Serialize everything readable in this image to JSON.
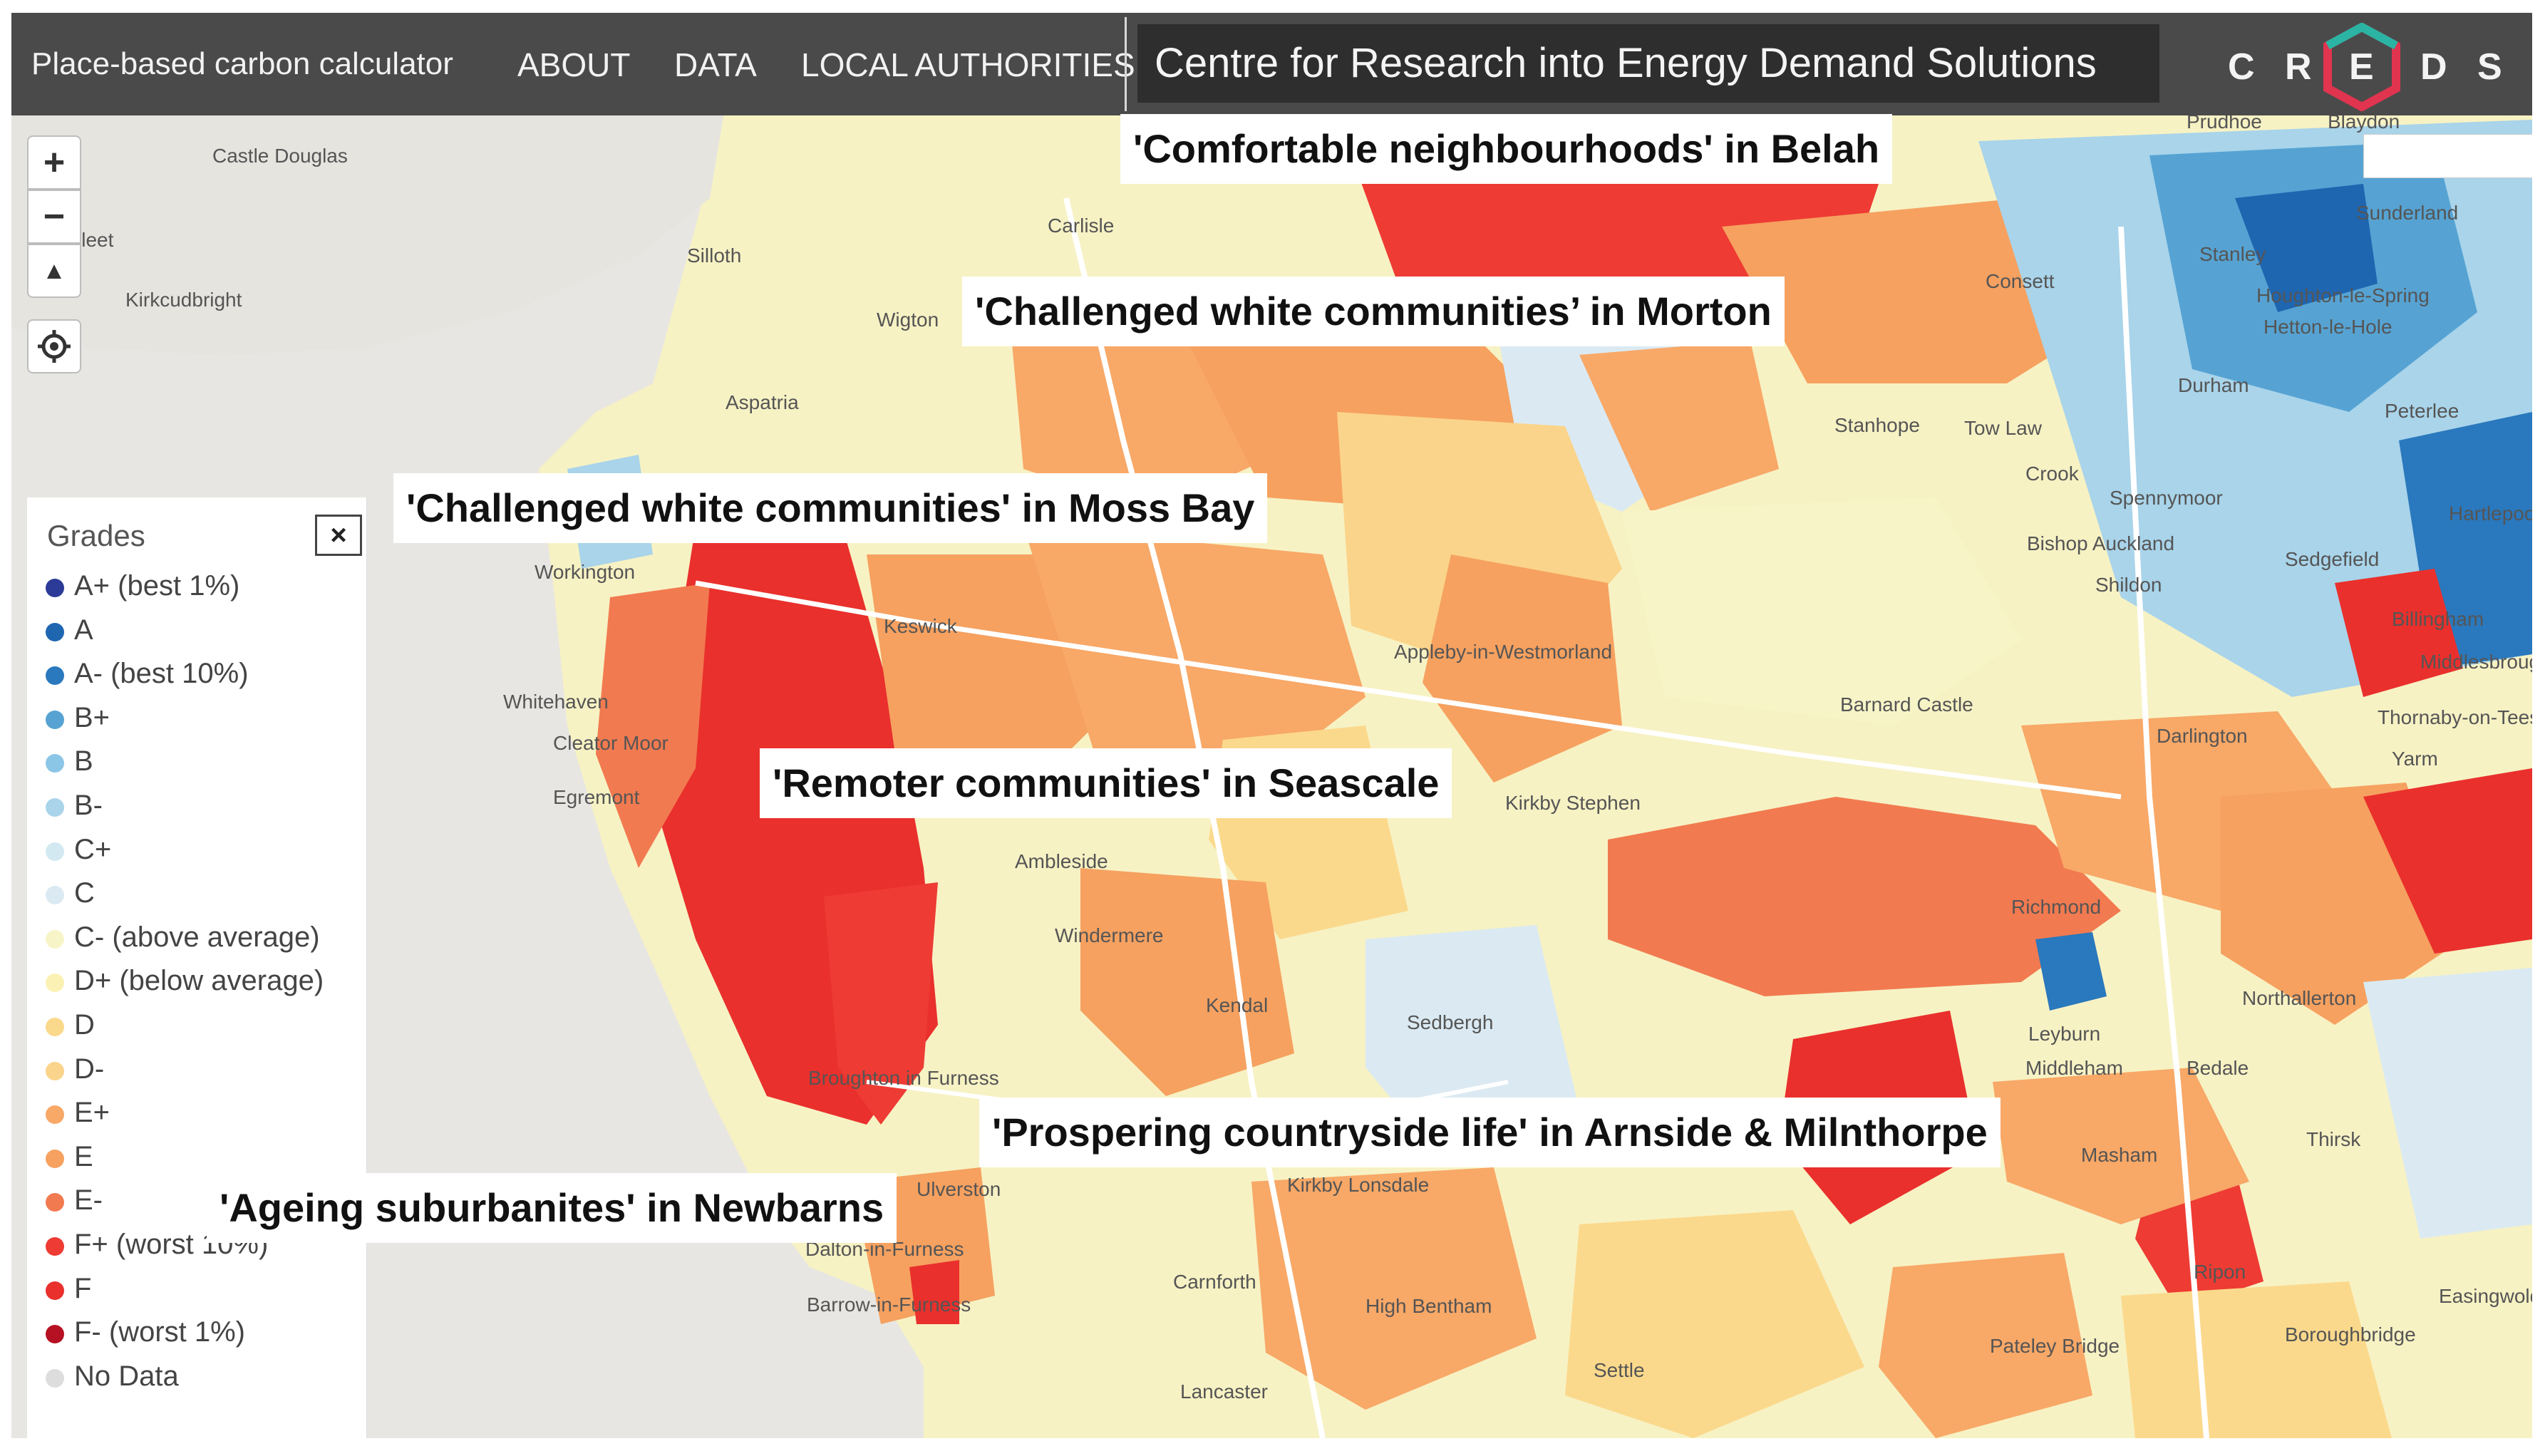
{
  "header": {
    "brand": "Place-based carbon calculator",
    "nav": [
      "ABOUT",
      "DATA",
      "LOCAL AUTHORITIES"
    ],
    "centre_title": "Centre for Research into Energy Demand Solutions",
    "logo_letters": [
      "C",
      "R",
      "E",
      "D",
      "S"
    ],
    "logo_icon": "creds-hexagon-logo"
  },
  "map_controls": {
    "zoom_in": "+",
    "zoom_out": "−",
    "reset_north": "▲",
    "locate_icon": "target-icon"
  },
  "legend": {
    "title": "Grades",
    "close_label": "×",
    "items": [
      {
        "label": "A+ (best 1%)",
        "color": "#2c3b97"
      },
      {
        "label": "A",
        "color": "#1f66b1"
      },
      {
        "label": "A- (best 10%)",
        "color": "#2a78bd"
      },
      {
        "label": "B+",
        "color": "#56a3d3"
      },
      {
        "label": "B",
        "color": "#8cc6e6"
      },
      {
        "label": "B-",
        "color": "#a9d4ea"
      },
      {
        "label": "C+",
        "color": "#d2e9f1"
      },
      {
        "label": "C",
        "color": "#dbeaf2"
      },
      {
        "label": "C- (above average)",
        "color": "#f7f5c8"
      },
      {
        "label": "D+ (below average)",
        "color": "#fbf1b4"
      },
      {
        "label": "D",
        "color": "#fbd98c"
      },
      {
        "label": "D-",
        "color": "#fad48a"
      },
      {
        "label": "E+",
        "color": "#f8a867"
      },
      {
        "label": "E",
        "color": "#f6a160"
      },
      {
        "label": "E-",
        "color": "#f27a50"
      },
      {
        "label": "F+ (worst 10%)",
        "color": "#ee3b33"
      },
      {
        "label": "F",
        "color": "#e9302c"
      },
      {
        "label": "F- (worst 1%)",
        "color": "#b61122"
      },
      {
        "label": "No Data",
        "color": "#dddddd"
      }
    ]
  },
  "annotations": [
    "'Comfortable neighbourhoods' in Belah",
    "'Challenged white communities’ in Morton",
    "'Challenged white communities' in Moss Bay",
    "'Remoter communities' in Seascale",
    "'Prospering countryside life' in Arnside & Milnthorpe",
    "'Ageing suburbanites' in Newbarns"
  ],
  "place_labels": [
    "Castle Douglas",
    "of Fleet",
    "Kirkcudbright",
    "Silloth",
    "Carlisle",
    "Wigton",
    "Aspatria",
    "Workington",
    "Whitehaven",
    "Cleator Moor",
    "Egremont",
    "Keswick",
    "Ambleside",
    "Windermere",
    "Kendal",
    "Broughton in Furness",
    "Ulverston",
    "Dalton-in-Furness",
    "Barrow-in-Furness",
    "Kirkby Lonsdale",
    "Carnforth",
    "High Bentham",
    "Lancaster",
    "Sedbergh",
    "Appleby-in-Westmorland",
    "Kirkby Stephen",
    "Barnard Castle",
    "Stanhope",
    "Tow Law",
    "Crook",
    "Spennymoor",
    "Bishop Auckland",
    "Shildon",
    "Sedgefield",
    "Durham",
    "Consett",
    "Stanley",
    "Houghton-le-Spring",
    "Hetton-le-Hole",
    "Peterlee",
    "Sunderland",
    "Hartlepool",
    "Billingham",
    "Middlesbrough",
    "Thornaby-on-Tees",
    "Yarm",
    "Darlington",
    "Richmond",
    "Northallerton",
    "Leyburn",
    "Middleham",
    "Bedale",
    "Masham",
    "Thirsk",
    "Ripon",
    "Easingwold",
    "Boroughbridge",
    "Pateley Bridge",
    "Settle",
    "Blaydon",
    "Prudhoe"
  ]
}
